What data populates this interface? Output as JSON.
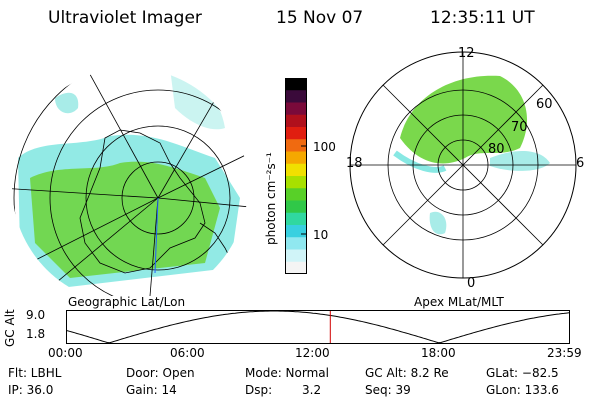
{
  "header": {
    "instrument": "Ultraviolet Imager",
    "date": "15 Nov 07",
    "time": "12:35:11 UT"
  },
  "colorbar": {
    "label": "photon cm⁻²s⁻¹",
    "ticks": [
      "100",
      "10"
    ],
    "colors": [
      "#000000",
      "#3a0a3a",
      "#7a0a3a",
      "#b0101c",
      "#e01e10",
      "#f06a10",
      "#f5a800",
      "#f0e000",
      "#a8e000",
      "#58d028",
      "#30c848",
      "#30d8a0",
      "#38d0e0",
      "#90e8f0",
      "#d0f4f8",
      "#f4f4f4"
    ]
  },
  "left_map": {
    "caption": "Geographic Lat/Lon"
  },
  "right_map": {
    "caption": "Apex MLat/MLT",
    "mlt_labels": {
      "top": "12",
      "left": "18",
      "right": "6",
      "bottom": "0"
    },
    "lat_labels": [
      "60",
      "70",
      "80"
    ]
  },
  "altitude_plot": {
    "ylabel": "GC Alt",
    "yticks": [
      "9.0",
      "1.8"
    ],
    "xticks": [
      "00:00",
      "06:00",
      "12:00",
      "18:00",
      "23:59"
    ],
    "current_time_hours": 12.586
  },
  "status": {
    "flt": "Flt: LBHL",
    "ip": "IP: 36.0",
    "door": "Door: Open",
    "gain": "Gain: 14",
    "mode": "Mode: Normal",
    "dsp_label": "Dsp:",
    "dsp_value": "3.2",
    "gc_alt": "GC Alt: 8.2 Re",
    "seq": "Seq: 39",
    "glat": "GLat: −82.5",
    "glon": "GLon: 133.6"
  },
  "colors": {
    "aurora_main": "#6cd438",
    "aurora_edge": "#38d8d0",
    "aurora_faint": "#a8ece8",
    "marker": "#d00000"
  }
}
